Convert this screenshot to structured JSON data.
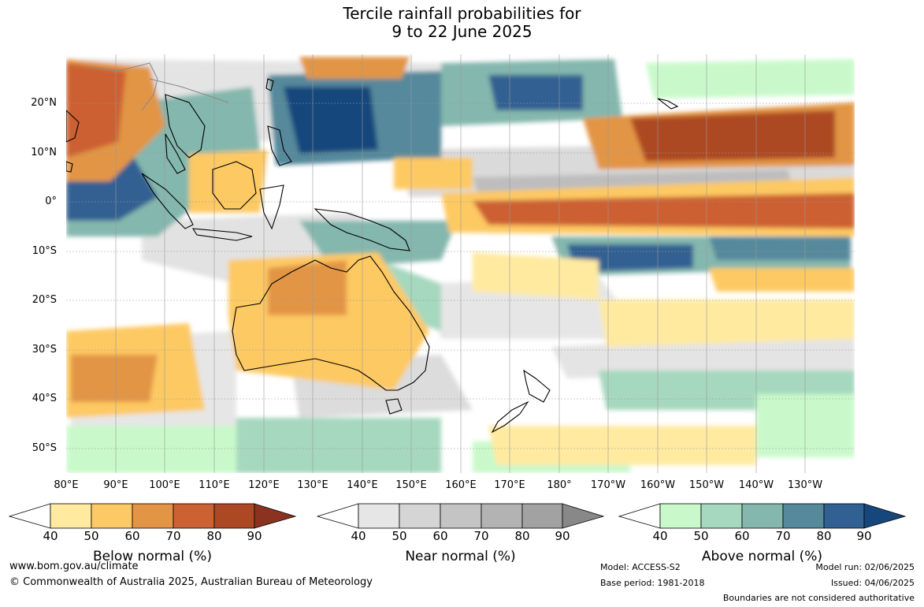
{
  "title": {
    "line1": "Tercile rainfall probabilities for",
    "line2": "9 to 22 June 2025"
  },
  "map": {
    "lat_labels": [
      "20°N",
      "10°N",
      "0°",
      "10°S",
      "20°S",
      "30°S",
      "40°S",
      "50°S"
    ],
    "lon_labels": [
      "80°E",
      "90°E",
      "100°E",
      "110°E",
      "120°E",
      "130°E",
      "140°E",
      "150°E",
      "160°E",
      "170°E",
      "180°",
      "170°W",
      "160°W",
      "150°W",
      "140°W",
      "130°W"
    ]
  },
  "colorbars": [
    {
      "title": "Below normal (%)",
      "ticks": [
        "40",
        "50",
        "60",
        "70",
        "80",
        "90"
      ],
      "colors": [
        "#ffeaa0",
        "#fdc964",
        "#e29545",
        "#cc6131",
        "#ad4824",
        "#8b3320"
      ]
    },
    {
      "title": "Near normal (%)",
      "ticks": [
        "40",
        "50",
        "60",
        "70",
        "80",
        "90"
      ],
      "colors": [
        "#e6e6e6",
        "#d5d5d5",
        "#c4c4c4",
        "#b3b3b3",
        "#a2a2a2",
        "#888888"
      ]
    },
    {
      "title": "Above normal (%)",
      "ticks": [
        "40",
        "50",
        "60",
        "70",
        "80",
        "90"
      ],
      "colors": [
        "#c9f9cb",
        "#a5d8be",
        "#84b7ad",
        "#55899b",
        "#316192",
        "#16477c"
      ]
    }
  ],
  "footer": {
    "website": "www.bom.gov.au/climate",
    "copyright": "© Commonwealth of Australia 2025, Australian Bureau of Meteorology",
    "model": "Model: ACCESS-S2",
    "base_period": "Base period: 1981-2018",
    "model_run": "Model run: 02/06/2025",
    "issued": "Issued: 04/06/2025",
    "disclaimer": "Boundaries are not considered authoritative"
  }
}
